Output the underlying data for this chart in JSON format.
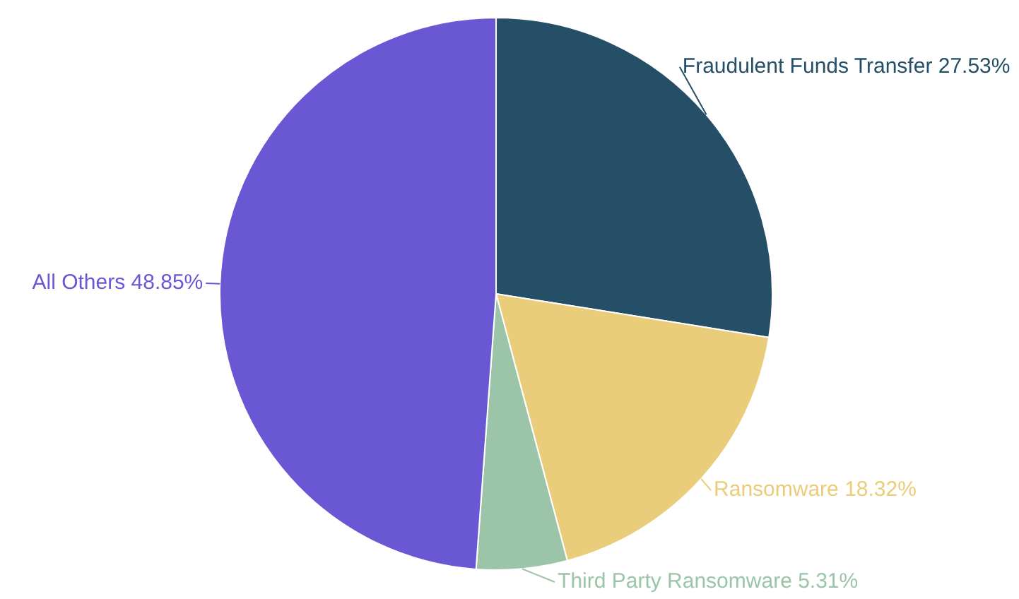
{
  "chart_data": {
    "type": "pie",
    "categories": [
      "Fraudulent Funds Transfer",
      "Ransomware",
      "Third Party Ransomware",
      "All Others"
    ],
    "values": [
      27.53,
      18.32,
      5.31,
      48.85
    ],
    "colors": [
      "#254e67",
      "#eacd7a",
      "#9bc4a9",
      "#6a57d3"
    ],
    "value_labels": [
      "27.53%",
      "18.32%",
      "5.31%",
      "48.85%"
    ],
    "legend": false
  }
}
